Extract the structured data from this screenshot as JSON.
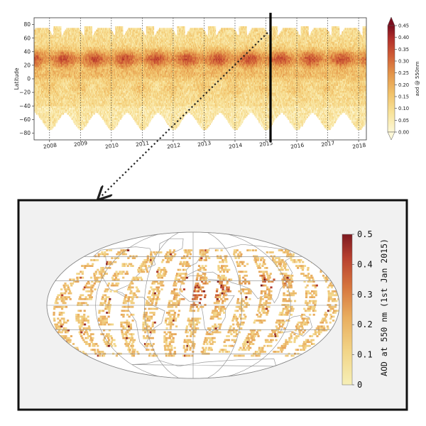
{
  "chart_data": [
    {
      "type": "heatmap",
      "ylabel": "Latitude",
      "y_ticks": [
        "80",
        "60",
        "40",
        "20",
        "0",
        "−20",
        "−40",
        "−60",
        "−80"
      ],
      "ylim": [
        -90,
        90
      ],
      "x_ticks": [
        "2008",
        "2009",
        "2010",
        "2011",
        "2012",
        "2013",
        "2014",
        "2015",
        "2016",
        "2017",
        "2018"
      ],
      "xlim": [
        2007.5,
        2018.25
      ],
      "colorbar": {
        "label": "aod @ 550nm",
        "ticks": [
          "0.45",
          "0.40",
          "0.35",
          "0.30",
          "0.25",
          "0.20",
          "0.15",
          "0.10",
          "0.05",
          "0.00"
        ],
        "range": [
          0,
          0.45
        ],
        "extend": "both"
      },
      "highlight_year": 2015.15,
      "colors": [
        "#fdf8d8",
        "#f8e39a",
        "#f1c26a",
        "#e39449",
        "#cf5c35",
        "#b02e2a",
        "#7a0e1e"
      ]
    },
    {
      "type": "heatmap",
      "projection": "robinson",
      "colorbar": {
        "label": "AOD at 550 nm (1st Jan 2015)",
        "ticks": [
          "0.5",
          "0.4",
          "0.3",
          "0.2",
          "0.1",
          "0"
        ],
        "range": [
          0,
          0.5
        ]
      },
      "colors": [
        "#f6efb6",
        "#f2d588",
        "#e9ad5e",
        "#d6753e",
        "#b84130",
        "#7e1a20"
      ]
    }
  ]
}
